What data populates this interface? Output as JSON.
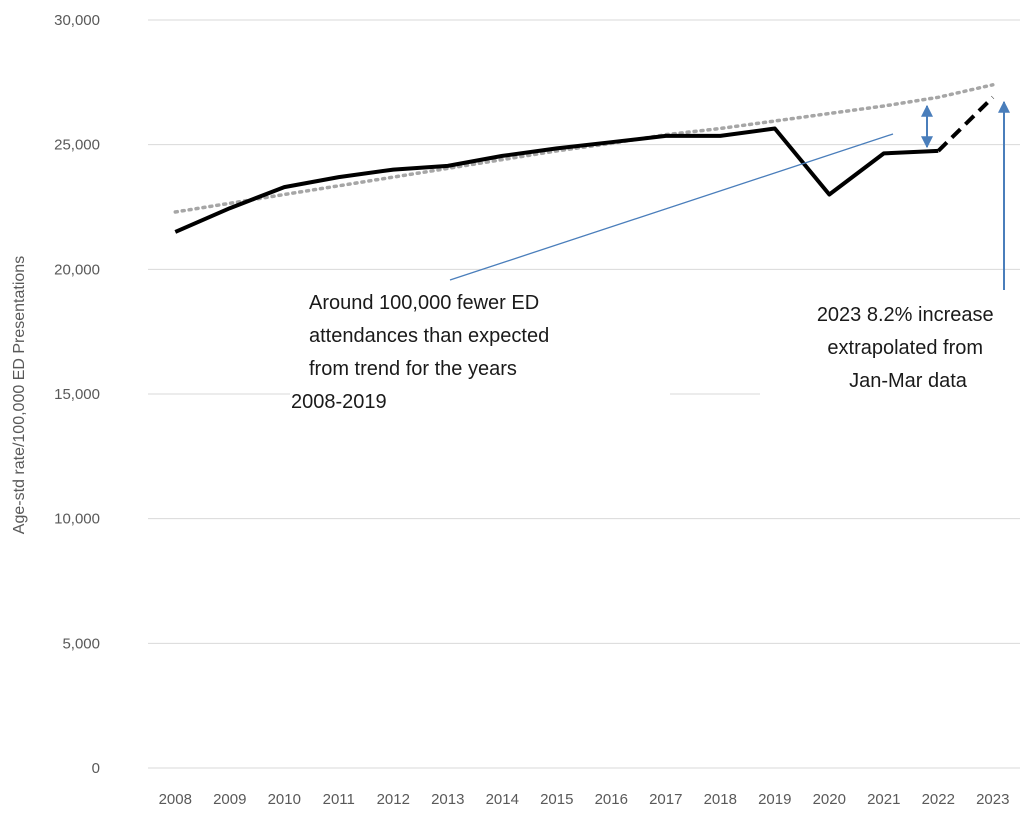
{
  "chart_data": {
    "type": "line",
    "title": "",
    "xlabel": "",
    "ylabel": "Age-std rate/100,000 ED Presentations",
    "ylim": [
      0,
      30000
    ],
    "yticks": [
      "0",
      "5,000",
      "10,000",
      "15,000",
      "20,000",
      "25,000",
      "30,000"
    ],
    "categories": [
      "2008",
      "2009",
      "2010",
      "2011",
      "2012",
      "2013",
      "2014",
      "2015",
      "2016",
      "2017",
      "2018",
      "2019",
      "2020",
      "2021",
      "2022",
      "2023"
    ],
    "grid": true,
    "legend": "none",
    "series": [
      {
        "style": "solid",
        "color": "#000000",
        "values": [
          21500,
          22450,
          23300,
          23700,
          24000,
          24150,
          24550,
          24850,
          25100,
          25350,
          25350,
          25650,
          23000,
          24650,
          24750,
          null
        ]
      },
      {
        "style": "dashed",
        "color": "#000000",
        "values": [
          null,
          null,
          null,
          null,
          null,
          null,
          null,
          null,
          null,
          null,
          null,
          null,
          null,
          null,
          24750,
          26900
        ]
      },
      {
        "style": "dotted",
        "color": "#a6a6a6",
        "values": [
          22300,
          22650,
          23000,
          23350,
          23700,
          24050,
          24400,
          24750,
          25050,
          25400,
          25650,
          25950,
          26250,
          26550,
          26900,
          27400
        ]
      }
    ],
    "annotations": [
      {
        "lines": [
          "Around 100,000 fewer ED",
          "attendances than expected",
          "from trend for the years",
          "2008-2019"
        ]
      },
      {
        "lines": [
          "2023 8.2% increase",
          "extrapolated from",
          "Jan-Mar data"
        ]
      }
    ]
  },
  "colors": {
    "axis_text": "#595959",
    "gridline": "#d9d9d9",
    "annotation_arrow": "#4a7ebb"
  }
}
